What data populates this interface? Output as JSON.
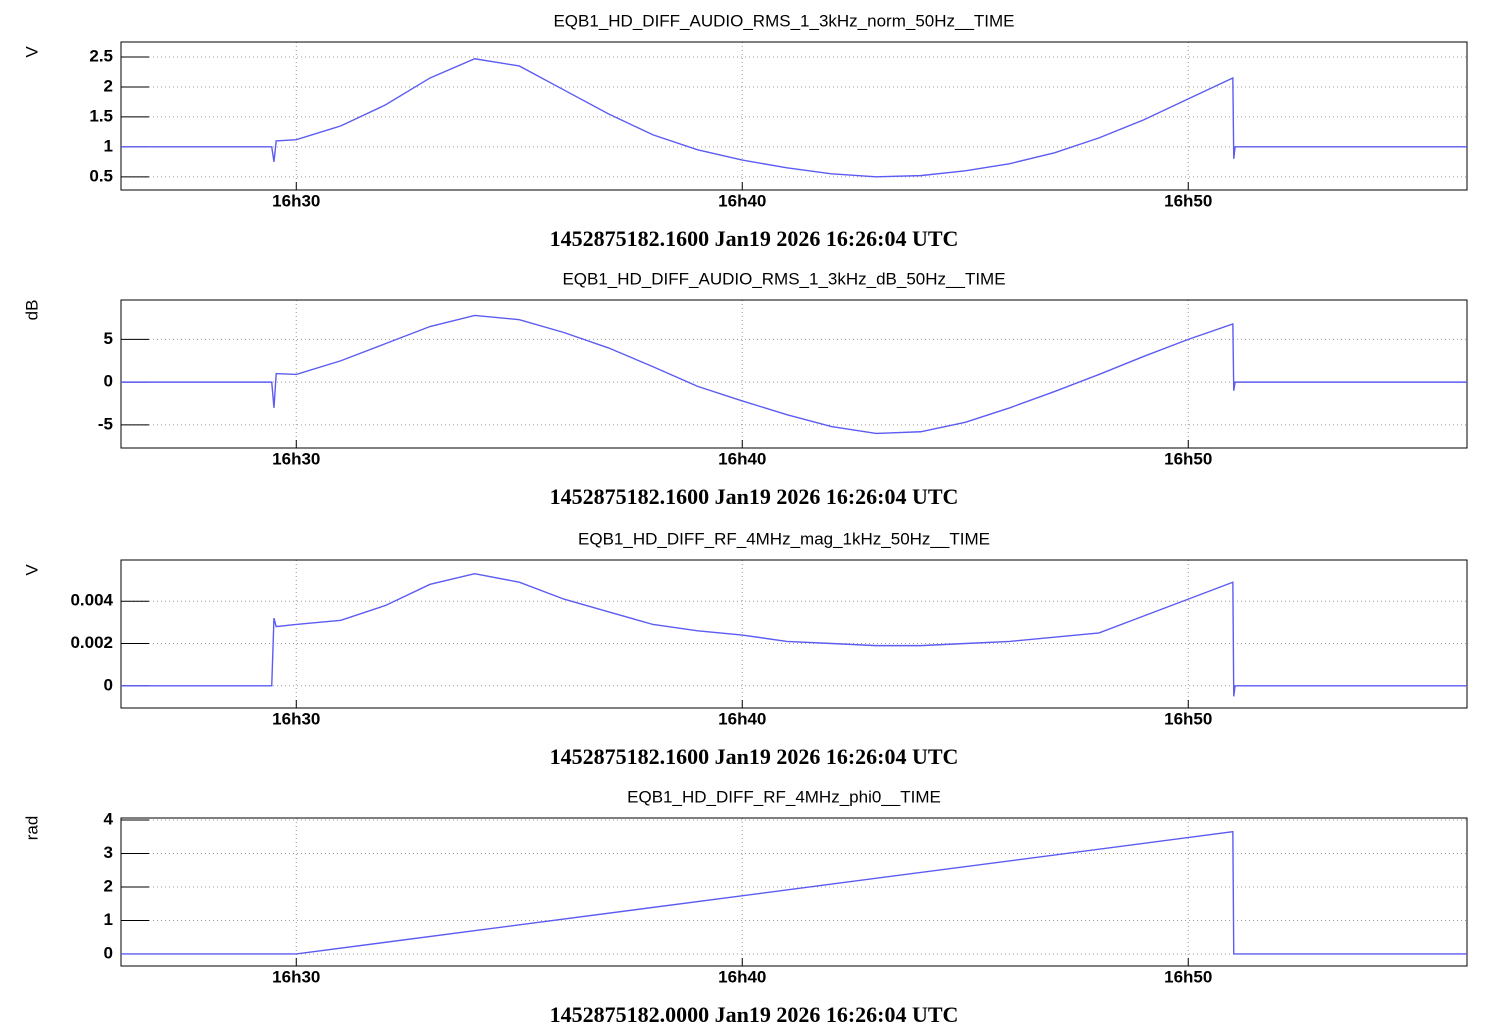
{
  "chart_data": [
    {
      "type": "line",
      "title": "EQB1_HD_DIFF_AUDIO_RMS_1_3kHz_norm_50Hz__TIME",
      "ylabel": "V",
      "time_label": "1452875182.1600 Jan19 2026 16:26:04 UTC",
      "color": "#5c5cf2",
      "grid": true,
      "x": [
        26.07,
        29.45,
        29.5,
        29.55,
        30,
        31,
        32,
        33,
        34,
        35,
        36,
        37,
        38,
        39,
        40,
        41,
        42,
        43,
        44,
        45,
        46,
        47,
        48,
        49,
        50,
        51.0,
        51.02,
        51.05,
        56.25
      ],
      "values": [
        1,
        1,
        0.75,
        1.1,
        1.12,
        1.35,
        1.7,
        2.15,
        2.47,
        2.35,
        1.95,
        1.55,
        1.2,
        0.95,
        0.78,
        0.65,
        0.55,
        0.5,
        0.52,
        0.6,
        0.72,
        0.9,
        1.15,
        1.45,
        1.8,
        2.15,
        0.8,
        1,
        1
      ],
      "xlim": [
        26.07,
        56.25
      ],
      "xticks": [
        {
          "value": 30,
          "label": "16h30"
        },
        {
          "value": 40,
          "label": "16h40"
        },
        {
          "value": 50,
          "label": "16h50"
        }
      ],
      "ylim": [
        0.28,
        2.75
      ],
      "yticks": [
        0.5,
        1,
        1.5,
        2,
        2.5
      ]
    },
    {
      "type": "line",
      "title": "EQB1_HD_DIFF_AUDIO_RMS_1_3kHz_dB_50Hz__TIME",
      "ylabel": "dB",
      "time_label": "1452875182.1600 Jan19 2026 16:26:04 UTC",
      "color": "#5c5cf2",
      "grid": true,
      "x": [
        26.07,
        29.45,
        29.5,
        29.55,
        30,
        31,
        32,
        33,
        34,
        35,
        36,
        37,
        38,
        39,
        40,
        41,
        42,
        43,
        44,
        45,
        46,
        47,
        48,
        49,
        50,
        51.0,
        51.02,
        51.05,
        56.25
      ],
      "values": [
        0,
        0,
        -3,
        1,
        0.9,
        2.5,
        4.5,
        6.5,
        7.8,
        7.3,
        5.8,
        4,
        1.8,
        -0.5,
        -2.2,
        -3.8,
        -5.2,
        -6,
        -5.8,
        -4.7,
        -3,
        -1.1,
        0.9,
        3,
        5,
        6.8,
        -1,
        0,
        0
      ],
      "xlim": [
        26.07,
        56.25
      ],
      "xticks": [
        {
          "value": 30,
          "label": "16h30"
        },
        {
          "value": 40,
          "label": "16h40"
        },
        {
          "value": 50,
          "label": "16h50"
        }
      ],
      "ylim": [
        -7.7,
        9.6
      ],
      "yticks": [
        -5,
        0,
        5
      ]
    },
    {
      "type": "line",
      "title": "EQB1_HD_DIFF_RF_4MHz_mag_1kHz_50Hz__TIME",
      "ylabel": "V",
      "time_label": "1452875182.1600 Jan19 2026 16:26:04 UTC",
      "color": "#5c5cf2",
      "grid": true,
      "x": [
        26.07,
        29.45,
        29.5,
        29.55,
        30,
        31,
        32,
        33,
        34,
        35,
        36,
        37,
        38,
        39,
        40,
        41,
        42,
        43,
        44,
        45,
        46,
        47,
        48,
        49,
        50,
        51.0,
        51.02,
        51.05,
        56.25
      ],
      "values": [
        0,
        0,
        0.0032,
        0.0028,
        0.0029,
        0.0031,
        0.0038,
        0.0048,
        0.0053,
        0.0049,
        0.0041,
        0.0035,
        0.0029,
        0.0026,
        0.0024,
        0.0021,
        0.002,
        0.0019,
        0.0019,
        0.002,
        0.0021,
        0.0023,
        0.0025,
        0.0033,
        0.0041,
        0.0049,
        -0.0005,
        0,
        0
      ],
      "xlim": [
        26.07,
        56.25
      ],
      "xticks": [
        {
          "value": 30,
          "label": "16h30"
        },
        {
          "value": 40,
          "label": "16h40"
        },
        {
          "value": 50,
          "label": "16h50"
        }
      ],
      "ylim": [
        -0.00105,
        0.00595
      ],
      "yticks": [
        0,
        0.002,
        0.004
      ]
    },
    {
      "type": "line",
      "title": "EQB1_HD_DIFF_RF_4MHz_phi0__TIME",
      "ylabel": "rad",
      "time_label": "1452875182.0000 Jan19 2026 16:26:04 UTC",
      "color": "#5c5cf2",
      "grid": true,
      "x": [
        26.07,
        30,
        51.0,
        51.02,
        56.25
      ],
      "values": [
        0,
        0,
        3.65,
        0,
        0
      ],
      "xlim": [
        26.07,
        56.25
      ],
      "xticks": [
        {
          "value": 30,
          "label": "16h30"
        },
        {
          "value": 40,
          "label": "16h40"
        },
        {
          "value": 50,
          "label": "16h50"
        }
      ],
      "ylim": [
        -0.36,
        4.06
      ],
      "yticks": [
        0,
        1,
        2,
        3,
        4
      ]
    }
  ]
}
